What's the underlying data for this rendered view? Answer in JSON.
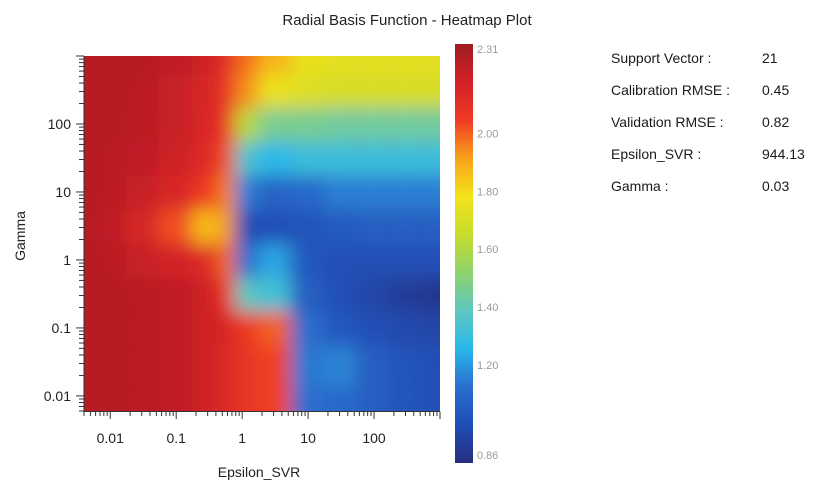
{
  "chart_data": {
    "type": "heatmap",
    "title": "Radial Basis Function - Heatmap Plot",
    "xlabel": "Epsilon_SVR",
    "ylabel": "Gamma",
    "x_scale": "log",
    "y_scale": "log",
    "xlim": [
      0.004,
      1000
    ],
    "ylim": [
      0.006,
      1000
    ],
    "x_ticks": [
      {
        "value": 0.01,
        "label": "0.01"
      },
      {
        "value": 0.1,
        "label": "0.1"
      },
      {
        "value": 1,
        "label": "1"
      },
      {
        "value": 10,
        "label": "10"
      },
      {
        "value": 100,
        "label": "100"
      }
    ],
    "y_ticks": [
      {
        "value": 0.01,
        "label": "0.01"
      },
      {
        "value": 0.1,
        "label": "0.1"
      },
      {
        "value": 1,
        "label": "1"
      },
      {
        "value": 10,
        "label": "10"
      },
      {
        "value": 100,
        "label": "100"
      }
    ],
    "colorbar": {
      "min": 0.86,
      "max": 2.31,
      "ticks": [
        {
          "value": 2.31,
          "label": "2.31"
        },
        {
          "value": 2.0,
          "label": "2.00"
        },
        {
          "value": 1.8,
          "label": "1.80"
        },
        {
          "value": 1.6,
          "label": "1.60"
        },
        {
          "value": 1.4,
          "label": "1.40"
        },
        {
          "value": 1.2,
          "label": "1.20"
        },
        {
          "value": 0.86,
          "label": "0.86"
        }
      ],
      "colors": [
        "#262e80",
        "#1f4db5",
        "#2a6fcf",
        "#29b8ea",
        "#5ec8c0",
        "#8ed26c",
        "#c7dc2c",
        "#f3e21a",
        "#f9a21b",
        "#ef3a24",
        "#d02127",
        "#9e1c20"
      ]
    },
    "x": [
      0.004,
      0.01,
      0.03,
      0.1,
      0.3,
      0.6,
      1,
      3,
      10,
      30,
      100,
      300,
      1000
    ],
    "y": [
      1000,
      300,
      100,
      30,
      10,
      3,
      1,
      0.3,
      0.1,
      0.03,
      0.006
    ],
    "z": [
      [
        2.25,
        2.25,
        2.25,
        2.22,
        2.18,
        2.1,
        1.98,
        1.88,
        1.76,
        1.74,
        1.74,
        1.74,
        1.74
      ],
      [
        2.25,
        2.25,
        2.24,
        2.2,
        2.15,
        2.07,
        1.94,
        1.76,
        1.72,
        1.7,
        1.7,
        1.7,
        1.7
      ],
      [
        2.25,
        2.25,
        2.23,
        2.2,
        2.14,
        2.05,
        1.62,
        1.46,
        1.46,
        1.44,
        1.44,
        1.44,
        1.44
      ],
      [
        2.25,
        2.24,
        2.22,
        2.18,
        2.12,
        2.02,
        1.34,
        1.26,
        1.3,
        1.3,
        1.3,
        1.3,
        1.3
      ],
      [
        2.25,
        2.24,
        2.2,
        2.14,
        2.05,
        1.95,
        1.15,
        1.08,
        1.1,
        1.15,
        1.15,
        1.15,
        1.15
      ],
      [
        2.25,
        2.22,
        2.15,
        2.02,
        1.86,
        1.92,
        1.0,
        1.0,
        1.02,
        1.05,
        1.06,
        1.06,
        1.06
      ],
      [
        2.25,
        2.24,
        2.2,
        2.16,
        2.12,
        1.98,
        1.12,
        1.22,
        1.04,
        1.0,
        1.0,
        1.0,
        1.0
      ],
      [
        2.25,
        2.25,
        2.24,
        2.22,
        2.18,
        2.06,
        1.38,
        1.32,
        1.06,
        1.0,
        0.96,
        0.92,
        0.9
      ],
      [
        2.25,
        2.25,
        2.24,
        2.22,
        2.18,
        2.14,
        2.05,
        2.0,
        1.12,
        1.04,
        1.0,
        0.98,
        0.96
      ],
      [
        2.25,
        2.25,
        2.24,
        2.22,
        2.18,
        2.12,
        2.08,
        2.04,
        1.14,
        1.16,
        1.06,
        1.02,
        1.0
      ],
      [
        2.25,
        2.25,
        2.24,
        2.22,
        2.18,
        2.12,
        2.08,
        2.04,
        1.12,
        1.1,
        1.06,
        1.02,
        1.0
      ]
    ]
  },
  "stats": [
    {
      "label": "Support Vector :",
      "value": "21"
    },
    {
      "label": "Calibration RMSE :",
      "value": "0.45"
    },
    {
      "label": "Validation RMSE :",
      "value": "0.82"
    },
    {
      "label": "Epsilon_SVR :",
      "value": "944.13"
    },
    {
      "label": "Gamma :",
      "value": "0.03"
    }
  ]
}
